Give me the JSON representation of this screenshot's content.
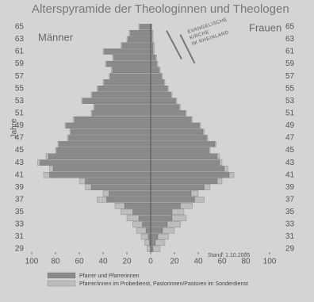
{
  "chart_data": {
    "type": "pyramid",
    "title": "Alterspyramide der Theologinnen und Theologen",
    "left_label": "Männer",
    "right_label": "Frauen",
    "y_label": "Jahre",
    "annotation": "Stand: 1.10.2005",
    "logo": [
      "EVANGELISCHE",
      "KIRCHE",
      "IM RHEINLAND"
    ],
    "ages": [
      29,
      30,
      31,
      32,
      33,
      34,
      35,
      36,
      37,
      38,
      39,
      40,
      41,
      42,
      43,
      44,
      45,
      46,
      47,
      48,
      49,
      50,
      51,
      52,
      53,
      54,
      55,
      56,
      57,
      58,
      59,
      60,
      61,
      62,
      63,
      64,
      65
    ],
    "series": [
      {
        "name": "Pfarrer und Pfarrerinnen",
        "color": "#8a8a8a",
        "men": [
          0,
          1,
          2,
          4,
          7,
          10,
          15,
          22,
          37,
          35,
          50,
          55,
          85,
          82,
          93,
          86,
          79,
          77,
          69,
          67,
          71,
          64,
          49,
          47,
          57,
          49,
          44,
          39,
          34,
          32,
          37,
          31,
          39,
          24,
          19,
          17,
          9
        ],
        "women": [
          2,
          4,
          6,
          10,
          14,
          18,
          18,
          25,
          37,
          34,
          45,
          56,
          66,
          62,
          58,
          56,
          49,
          54,
          47,
          44,
          41,
          34,
          29,
          24,
          21,
          17,
          14,
          11,
          9,
          7,
          5,
          4,
          2,
          2,
          1,
          1,
          1
        ]
      },
      {
        "name": "Pfarrer/innen im Probedienst, Pastorinnen/Pastoren im Sonderdienst",
        "color": "#bdbdbd",
        "men": [
          3,
          4,
          6,
          8,
          8,
          10,
          10,
          8,
          8,
          5,
          5,
          5,
          5,
          3,
          2,
          2,
          1,
          1,
          1,
          1,
          1,
          1,
          1,
          1,
          1,
          1,
          1,
          1,
          1,
          1,
          1,
          1,
          1,
          1,
          1,
          1,
          1
        ],
        "women": [
          6,
          8,
          9,
          10,
          11,
          12,
          10,
          10,
          8,
          6,
          5,
          4,
          4,
          3,
          2,
          2,
          1,
          1,
          1,
          1,
          1,
          1,
          1,
          1,
          1,
          1,
          1,
          1,
          1,
          1,
          1,
          1,
          1,
          1,
          1,
          1,
          0
        ]
      }
    ],
    "xlim": [
      -100,
      100
    ],
    "xticks": [
      {
        "value": -100,
        "label": "100"
      },
      {
        "value": -80,
        "label": "80"
      },
      {
        "value": -60,
        "label": "60"
      },
      {
        "value": -40,
        "label": "40"
      },
      {
        "value": -20,
        "label": "20"
      },
      0,
      20,
      40,
      60,
      80,
      100
    ],
    "ylim": [
      28.5,
      65.5
    ],
    "yticks": [
      29,
      31,
      33,
      35,
      37,
      39,
      41,
      43,
      45,
      47,
      49,
      51,
      53,
      55,
      57,
      59,
      61,
      63,
      65
    ]
  }
}
